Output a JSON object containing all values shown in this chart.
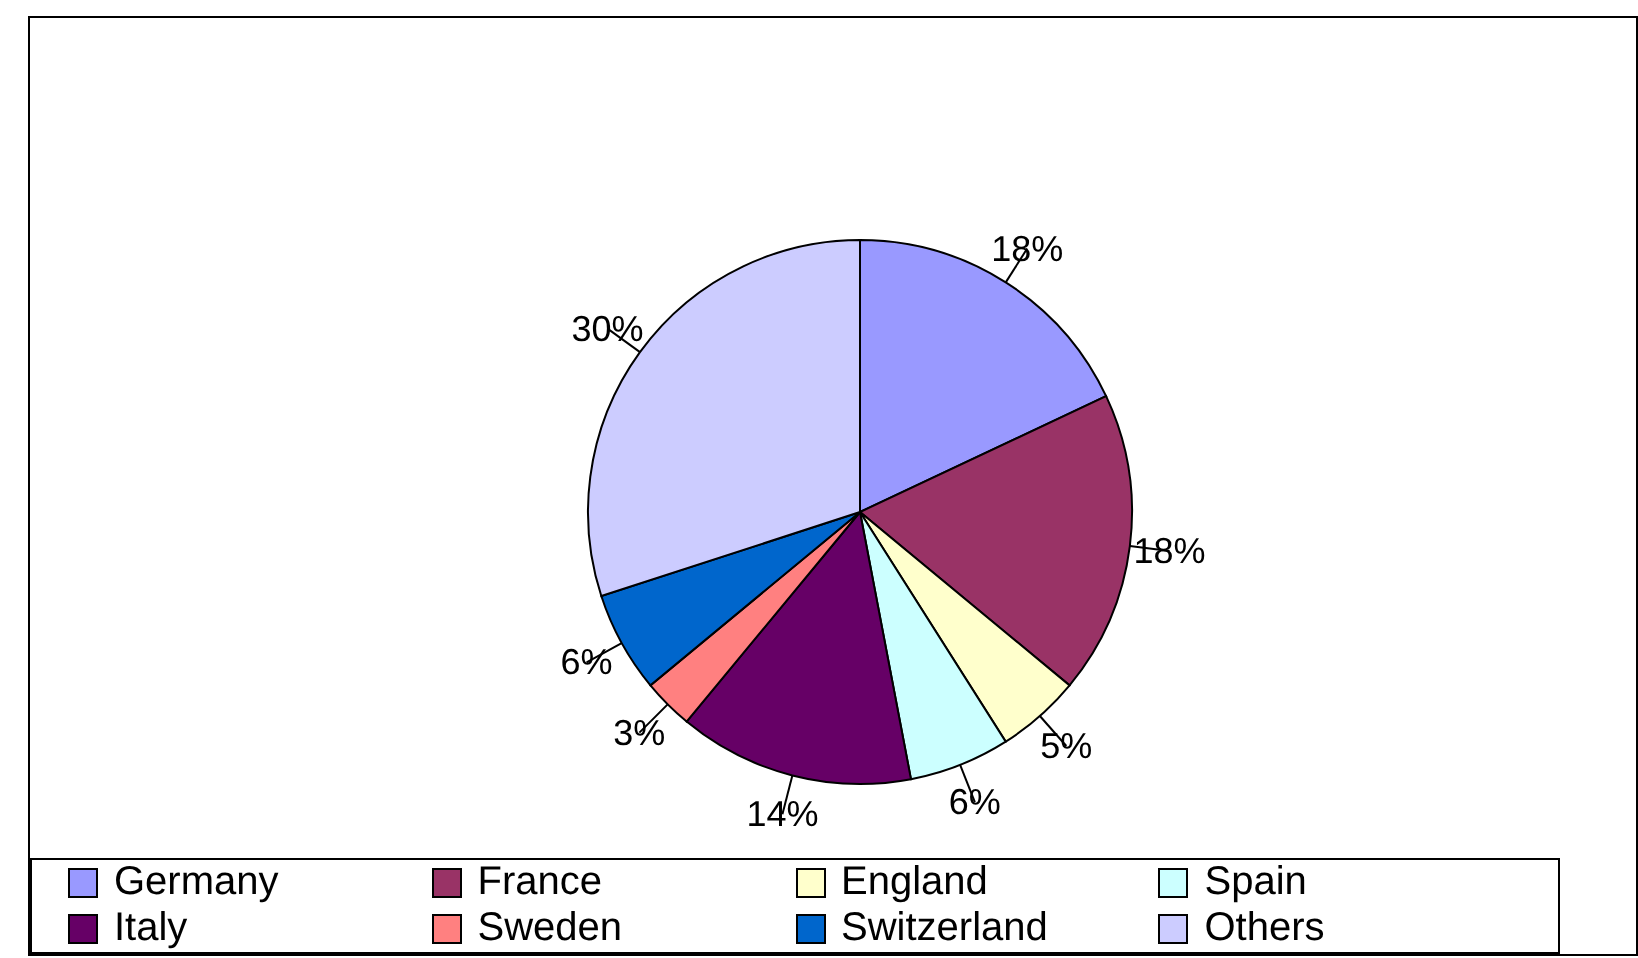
{
  "chart_data": {
    "type": "pie",
    "categories": [
      "Germany",
      "France",
      "England",
      "Spain",
      "Italy",
      "Sweden",
      "Switzerland",
      "Others"
    ],
    "values": [
      18,
      18,
      5,
      6,
      14,
      3,
      6,
      30
    ],
    "colors": [
      "#9999ff",
      "#993366",
      "#ffffcc",
      "#ccffff",
      "#660066",
      "#ff8080",
      "#0066cc",
      "#ccccff"
    ],
    "value_labels": [
      "18%",
      "18%",
      "5%",
      "6%",
      "14%",
      "3%",
      "6%",
      "30%"
    ],
    "legend": "bottom"
  }
}
